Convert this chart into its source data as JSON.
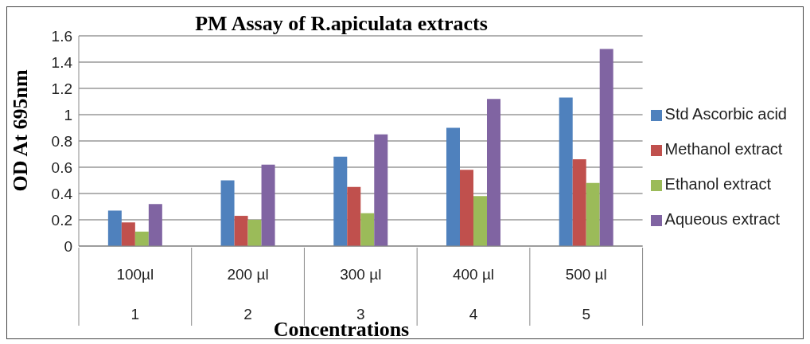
{
  "chart_data": {
    "type": "bar",
    "title": "PM Assay of R.apiculata extracts",
    "xlabel": "Concentrations",
    "ylabel": "OD At 695nm",
    "categories": [
      "100µl\n1",
      "200 µl\n2",
      "300 µl\n3",
      "400 µl\n4",
      "500 µl\n5"
    ],
    "series": [
      {
        "name": "Std Ascorbic acid",
        "color": "#4f81bd",
        "values": [
          0.27,
          0.5,
          0.68,
          0.9,
          1.13
        ]
      },
      {
        "name": "Methanol extract",
        "color": "#c0504d",
        "values": [
          0.18,
          0.23,
          0.45,
          0.58,
          0.66
        ]
      },
      {
        "name": "Ethanol extract",
        "color": "#9bbb59",
        "values": [
          0.11,
          0.2,
          0.25,
          0.38,
          0.48
        ]
      },
      {
        "name": "Aqueous extract",
        "color": "#8064a2",
        "values": [
          0.32,
          0.62,
          0.85,
          1.12,
          1.5
        ]
      }
    ],
    "ylim": [
      0,
      1.6
    ],
    "yticks": [
      0,
      0.2,
      0.4,
      0.6,
      0.8,
      1,
      1.2,
      1.4,
      1.6
    ],
    "grid": "y",
    "legend": "right"
  }
}
